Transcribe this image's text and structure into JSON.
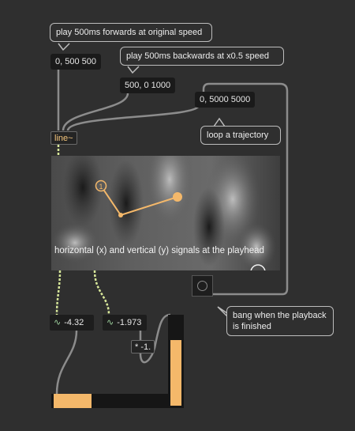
{
  "comments": {
    "play_forward": "play 500ms forwards at original speed",
    "play_backward": "play 500ms backwards at x0.5 speed",
    "loop": "loop a trajectory",
    "bang_finished": "bang when the playback is finished"
  },
  "messages": {
    "forward": "0, 500 500",
    "backward": "500, 0 1000",
    "loop": "0, 5000 5000"
  },
  "objects": {
    "line": "line~",
    "multiply": "* -1."
  },
  "video": {
    "caption": "horizontal (x) and vertical (y) signals at the playhead",
    "marker_label": "1"
  },
  "signals": {
    "x_value": "-4.32",
    "y_value": "-1.973"
  },
  "sliders": {
    "horizontal_fill": 0.33,
    "vertical_fill": 0.74
  },
  "colors": {
    "background": "#2f2f2f",
    "accent": "#f4b86a",
    "signal_cord": "#d8e89a",
    "cord": "#8c8c8c"
  }
}
